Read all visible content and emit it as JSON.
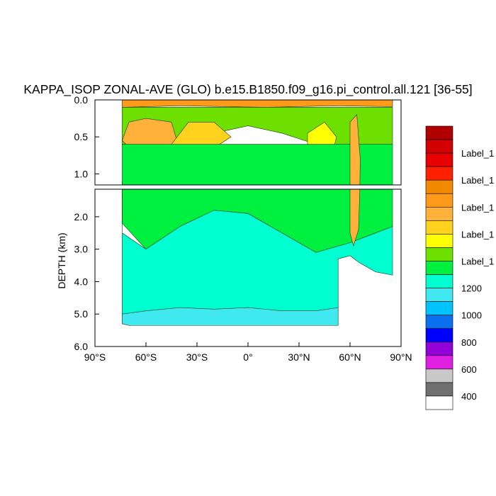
{
  "chart_data": {
    "type": "heatmap",
    "title": "KAPPA_ISOP ZONAL-AVE (GLO) b.e15.B1850.f09_g16.pi_control.all.121 [36-55]",
    "ylabel": "DEPTH (km)",
    "xlim": [
      -90,
      90
    ],
    "ylim": [
      6.0,
      0.0
    ],
    "x_ticks": [
      {
        "value": -90,
        "label": "90°S"
      },
      {
        "value": -60,
        "label": "60°S"
      },
      {
        "value": -30,
        "label": "30°S"
      },
      {
        "value": 0,
        "label": "0°"
      },
      {
        "value": 30,
        "label": "30°N"
      },
      {
        "value": 60,
        "label": "60°N"
      },
      {
        "value": 90,
        "label": "90°N"
      }
    ],
    "upper_y_ticks": [
      {
        "value": 0.0,
        "label": "0.0"
      },
      {
        "value": 0.5,
        "label": "0.5"
      },
      {
        "value": 1.0,
        "label": "1.0"
      }
    ],
    "lower_y_ticks": [
      {
        "value": 2.0,
        "label": "2.0"
      },
      {
        "value": 3.0,
        "label": "3.0"
      },
      {
        "value": 4.0,
        "label": "4.0"
      },
      {
        "value": 5.0,
        "label": "5.0"
      },
      {
        "value": 6.0,
        "label": "6.0"
      }
    ],
    "colorbar": {
      "colors": [
        "#b00000",
        "#d20000",
        "#e80000",
        "#ff2000",
        "#f28a00",
        "#ff9a1a",
        "#ffb13a",
        "#ffd21e",
        "#ffff00",
        "#6ee000",
        "#00f040",
        "#00ffd0",
        "#40e8f0",
        "#00c4ff",
        "#0a70f0",
        "#0000ff",
        "#9400d8",
        "#e020e0",
        "#c8c8c8",
        "#707070",
        "#ffffff"
      ],
      "labels": [
        "Label_1",
        "Label_1",
        "Label_1",
        "Label_1",
        "Label_1",
        "1200",
        "1000",
        "800",
        "600",
        "400"
      ]
    },
    "fields": [
      {
        "name": "surface",
        "color": "#ff9a1a",
        "points": [
          [
            -74,
            0.0
          ],
          [
            85,
            0.0
          ],
          [
            85,
            0.09
          ],
          [
            50,
            0.08
          ],
          [
            10,
            0.1
          ],
          [
            -40,
            0.08
          ],
          [
            -74,
            0.1
          ]
        ]
      },
      {
        "name": "upper-green",
        "color": "#6ee000",
        "points": [
          [
            -74,
            0.1
          ],
          [
            85,
            0.1
          ],
          [
            85,
            0.6
          ],
          [
            55,
            0.7
          ],
          [
            40,
            0.6
          ],
          [
            20,
            0.45
          ],
          [
            0,
            0.35
          ],
          [
            -20,
            0.45
          ],
          [
            -40,
            0.6
          ],
          [
            -74,
            0.6
          ]
        ]
      },
      {
        "name": "southern-orange",
        "color": "#ffb13a",
        "points": [
          [
            -74,
            0.55
          ],
          [
            -70,
            0.3
          ],
          [
            -60,
            0.25
          ],
          [
            -45,
            0.3
          ],
          [
            -40,
            0.7
          ],
          [
            -45,
            0.85
          ],
          [
            -55,
            0.9
          ],
          [
            -65,
            0.75
          ]
        ]
      },
      {
        "name": "southern-yellow",
        "color": "#ffd21e",
        "points": [
          [
            -52,
            0.9
          ],
          [
            -45,
            0.6
          ],
          [
            -35,
            0.3
          ],
          [
            -20,
            0.3
          ],
          [
            -10,
            0.5
          ],
          [
            -30,
            0.8
          ],
          [
            -40,
            1.5
          ],
          [
            -50,
            1.4
          ]
        ]
      },
      {
        "name": "northern-yellow",
        "color": "#ffff00",
        "points": [
          [
            35,
            0.45
          ],
          [
            45,
            0.3
          ],
          [
            52,
            0.5
          ],
          [
            50,
            0.7
          ],
          [
            40,
            0.8
          ],
          [
            35,
            0.7
          ]
        ]
      },
      {
        "name": "deep-green",
        "color": "#00f040",
        "points": [
          [
            -74,
            0.6
          ],
          [
            85,
            0.6
          ],
          [
            85,
            2.3
          ],
          [
            75,
            2.5
          ],
          [
            60,
            2.8
          ],
          [
            40,
            3.1
          ],
          [
            20,
            2.5
          ],
          [
            0,
            1.9
          ],
          [
            -20,
            1.8
          ],
          [
            -40,
            2.3
          ],
          [
            -60,
            3.0
          ],
          [
            -74,
            2.2
          ]
        ]
      },
      {
        "name": "deep-cyan",
        "color": "#00ffd0",
        "points": [
          [
            -74,
            1.1
          ],
          [
            -74,
            5.2
          ],
          [
            -60,
            5.2
          ],
          [
            -40,
            5.1
          ],
          [
            -20,
            5.05
          ],
          [
            0,
            5.1
          ],
          [
            20,
            5.05
          ],
          [
            40,
            5.05
          ],
          [
            53,
            5.05
          ],
          [
            53,
            3.3
          ],
          [
            60,
            3.2
          ],
          [
            65,
            3.4
          ],
          [
            75,
            3.7
          ],
          [
            85,
            3.8
          ],
          [
            85,
            2.3
          ],
          [
            75,
            2.5
          ],
          [
            60,
            2.8
          ],
          [
            40,
            3.1
          ],
          [
            20,
            2.5
          ],
          [
            0,
            1.9
          ],
          [
            -20,
            1.8
          ],
          [
            -40,
            2.3
          ],
          [
            -60,
            3.0
          ],
          [
            -74,
            2.5
          ]
        ]
      },
      {
        "name": "abyssal-cyan",
        "color": "#40e8f0",
        "points": [
          [
            -74,
            5.0
          ],
          [
            -60,
            4.9
          ],
          [
            -40,
            4.8
          ],
          [
            -20,
            4.85
          ],
          [
            0,
            4.8
          ],
          [
            20,
            4.9
          ],
          [
            40,
            4.9
          ],
          [
            53,
            4.8
          ],
          [
            53,
            5.35
          ],
          [
            -70,
            5.35
          ],
          [
            -74,
            5.3
          ]
        ]
      },
      {
        "name": "nordic-orange",
        "color": "#ffb13a",
        "points": [
          [
            60,
            0.3
          ],
          [
            64,
            0.2
          ],
          [
            66,
            0.8
          ],
          [
            65,
            2.4
          ],
          [
            62,
            2.9
          ],
          [
            60,
            2.5
          ]
        ]
      }
    ]
  }
}
